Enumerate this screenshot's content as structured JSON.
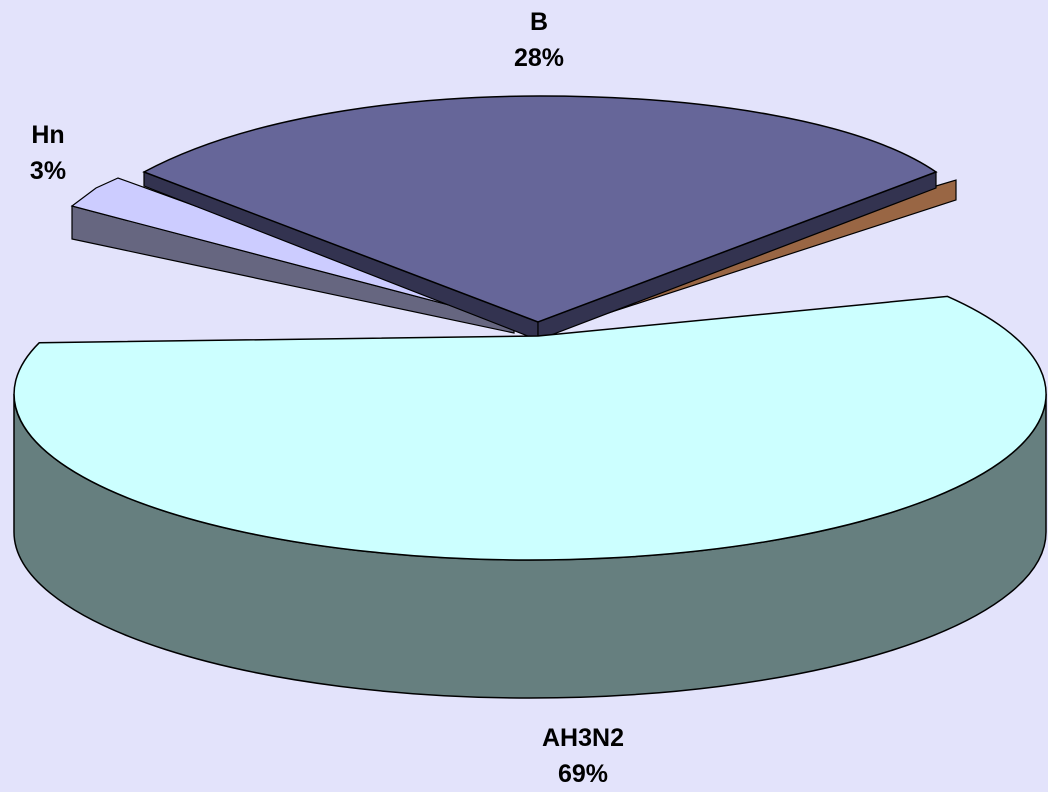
{
  "chart_data": {
    "type": "pie",
    "style": "3d-exploded",
    "slices": [
      {
        "label": "AH3N2",
        "value": 69,
        "value_label": "69%",
        "color": "#ccffff",
        "side_color": "#667f7f"
      },
      {
        "label": "B",
        "value": 28,
        "value_label": "28%",
        "color": "#666699",
        "side_color": "#333350"
      },
      {
        "label": "Hn",
        "value": 3,
        "value_label": "3%",
        "color": "#ccccff",
        "side_color": "#666680"
      }
    ],
    "extra_edge_color": "#996644",
    "background": "#e3e3fb"
  }
}
